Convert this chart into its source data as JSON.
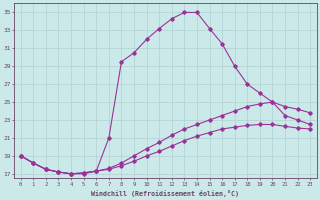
{
  "xlabel": "Windchill (Refroidissement éolien,°C)",
  "bg_color": "#cbe9e9",
  "line_color": "#993399",
  "grid_color": "#aacccc",
  "spine_color": "#664466",
  "tick_color": "#664466",
  "xlim": [
    -0.5,
    23.5
  ],
  "ylim": [
    16.5,
    36.0
  ],
  "yticks": [
    17,
    19,
    21,
    23,
    25,
    27,
    29,
    31,
    33,
    35
  ],
  "xticks": [
    0,
    1,
    2,
    3,
    4,
    5,
    6,
    7,
    8,
    9,
    10,
    11,
    12,
    13,
    14,
    15,
    16,
    17,
    18,
    19,
    20,
    21,
    22,
    23
  ],
  "line1_x": [
    0,
    1,
    2,
    3,
    4,
    5,
    6,
    7,
    8,
    9,
    10,
    11,
    12,
    13,
    14,
    15,
    16,
    17,
    18,
    19,
    20,
    21,
    22,
    23
  ],
  "line1_y": [
    19.0,
    18.2,
    17.5,
    17.2,
    17.0,
    17.0,
    17.3,
    21.0,
    29.5,
    30.5,
    32.0,
    33.2,
    34.3,
    35.0,
    35.0,
    33.2,
    31.5,
    29.0,
    27.0,
    26.0,
    25.0,
    23.5,
    23.0,
    22.5
  ],
  "line2_x": [
    0,
    1,
    2,
    3,
    4,
    5,
    6,
    7,
    8,
    9,
    10,
    11,
    12,
    13,
    14,
    15,
    16,
    17,
    18,
    19,
    20,
    21,
    22,
    23
  ],
  "line2_y": [
    19.0,
    18.2,
    17.5,
    17.2,
    17.0,
    17.1,
    17.3,
    17.6,
    18.2,
    19.0,
    19.8,
    20.5,
    21.3,
    22.0,
    22.5,
    23.0,
    23.5,
    24.0,
    24.5,
    24.8,
    25.0,
    24.5,
    24.2,
    23.8
  ],
  "line3_x": [
    0,
    1,
    2,
    3,
    4,
    5,
    6,
    7,
    8,
    9,
    10,
    11,
    12,
    13,
    14,
    15,
    16,
    17,
    18,
    19,
    20,
    21,
    22,
    23
  ],
  "line3_y": [
    19.0,
    18.2,
    17.5,
    17.2,
    17.0,
    17.1,
    17.3,
    17.5,
    17.9,
    18.4,
    19.0,
    19.5,
    20.1,
    20.7,
    21.2,
    21.6,
    22.0,
    22.2,
    22.4,
    22.5,
    22.5,
    22.3,
    22.1,
    22.0
  ]
}
